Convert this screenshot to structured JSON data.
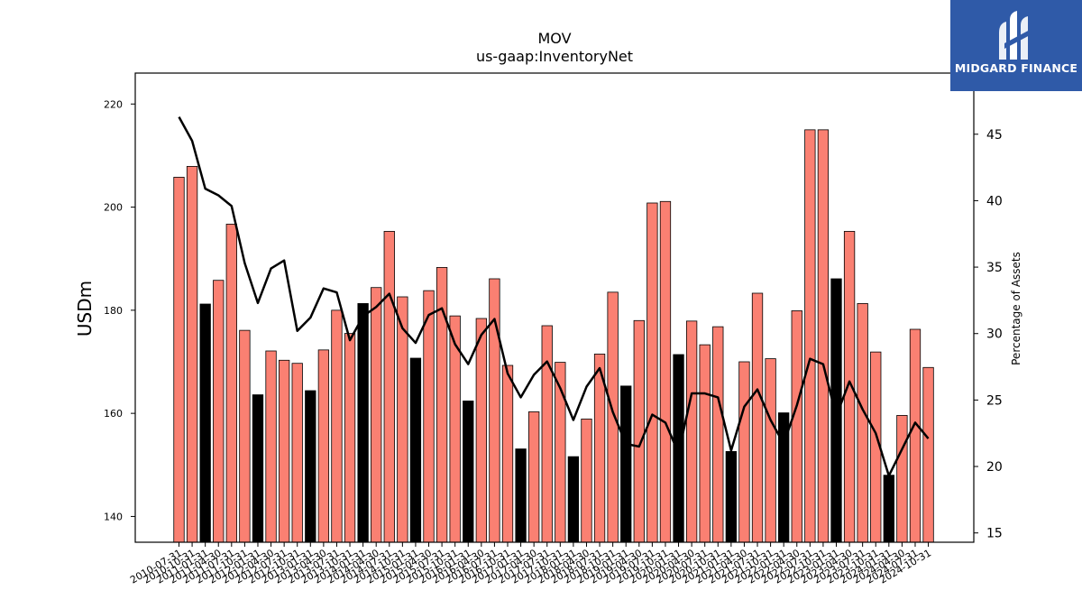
{
  "brand": {
    "name": "MIDGARD FINANCE",
    "logo_icon": "midgard-m-icon",
    "color": "#2f5aa8"
  },
  "chart_data": {
    "type": "bar",
    "title": "MOV",
    "subtitle": "us-gaap:InventoryNet",
    "ylabel": "USDm",
    "y2label": "Percentage of Assets",
    "ylim": [
      135,
      226
    ],
    "y2lim": [
      14.3,
      49.6
    ],
    "yticks": [
      140,
      160,
      180,
      200,
      220
    ],
    "y2ticks": [
      15,
      20,
      25,
      30,
      35,
      40,
      45
    ],
    "bar_color": "#fa8072",
    "highlight_color": "#000000",
    "line_color": "#000000",
    "categories": [
      "2010-07-31",
      "2010-10-31",
      "2011-01-31",
      "2011-04-30",
      "2011-07-31",
      "2011-10-31",
      "2012-01-31",
      "2012-04-30",
      "2012-07-31",
      "2012-10-31",
      "2013-01-31",
      "2013-04-30",
      "2013-07-31",
      "2013-10-31",
      "2014-01-31",
      "2014-04-30",
      "2014-07-31",
      "2014-10-31",
      "2015-01-31",
      "2015-04-30",
      "2015-07-31",
      "2015-10-31",
      "2016-01-31",
      "2016-04-30",
      "2016-07-31",
      "2016-10-31",
      "2017-01-31",
      "2017-04-30",
      "2017-07-31",
      "2017-10-31",
      "2018-01-31",
      "2018-04-30",
      "2018-07-31",
      "2018-10-31",
      "2019-01-31",
      "2019-04-30",
      "2019-07-31",
      "2019-10-31",
      "2020-01-31",
      "2020-04-30",
      "2020-07-31",
      "2020-10-31",
      "2021-01-31",
      "2021-04-30",
      "2021-07-31",
      "2021-10-31",
      "2022-01-31",
      "2022-04-30",
      "2022-07-31",
      "2022-10-31",
      "2023-01-31",
      "2023-04-30",
      "2023-07-31",
      "2023-10-31",
      "2024-01-31",
      "2024-04-30",
      "2024-07-31",
      "2024-10-31"
    ],
    "tick_labels": [
      "2010-07-31",
      "2010-10-31",
      "2011-01-31",
      "2011-04-30",
      "2011-07-31",
      "2011-10-31",
      "2012-01-31",
      "2012-04-30",
      "2012-07-31",
      "2012-10-31",
      "2013-01-31",
      "2013-04-30",
      "2013-07-31",
      "2013-10-31",
      "2014-01-31",
      "2014-04-30",
      "2014-07-31",
      "2014-10-31",
      "2015-01-31",
      "2015-04-30",
      "2015-07-31",
      "2015-10-31",
      "2016-01-31",
      "2016-04-30",
      "2016-07-31",
      "2016-10-31",
      "2017-01-31",
      "2017-04-30",
      "2017-07-31",
      "2017-10-31",
      "2018-01-31",
      "2018-04-30",
      "2018-07-31",
      "2018-10-31",
      "2019-01-31",
      "2019-04-30",
      "2019-07-31",
      "2019-10-31",
      "2020-01-31",
      "2020-04-30",
      "2020-07-31",
      "2020-10-31",
      "2021-01-31",
      "2021-04-30",
      "2021-07-31",
      "2021-10-31",
      "2022-01-31",
      "2022-04-30",
      "2022-07-31",
      "2022-10-31",
      "2023-01-31",
      "2023-04-30",
      "2023-07-31",
      "2023-10-31",
      "2024-01-31",
      "2024-04-30",
      "2024-07-31",
      "2024-10-31"
    ],
    "values": [
      205.8,
      207.9,
      181.2,
      185.8,
      196.7,
      176.1,
      163.6,
      172.1,
      170.3,
      169.7,
      164.4,
      172.3,
      180.0,
      175.5,
      181.3,
      184.4,
      195.3,
      182.6,
      170.7,
      183.8,
      188.3,
      178.9,
      162.4,
      178.4,
      186.1,
      169.3,
      153.1,
      160.3,
      177.0,
      169.9,
      151.6,
      158.9,
      171.5,
      183.5,
      165.3,
      178.0,
      200.8,
      201.1,
      171.4,
      177.9,
      173.3,
      176.8,
      152.6,
      170.0,
      183.3,
      170.6,
      160.1,
      179.9,
      215.0,
      215.0,
      186.1,
      195.3,
      181.3,
      171.9,
      148.0,
      159.6,
      176.3,
      168.9
    ],
    "highlight": [
      false,
      false,
      true,
      false,
      false,
      false,
      true,
      false,
      false,
      false,
      true,
      false,
      false,
      false,
      true,
      false,
      false,
      false,
      true,
      false,
      false,
      false,
      true,
      false,
      false,
      false,
      true,
      false,
      false,
      false,
      true,
      false,
      false,
      false,
      true,
      false,
      false,
      false,
      true,
      false,
      false,
      false,
      true,
      false,
      false,
      false,
      true,
      false,
      false,
      false,
      true,
      false,
      false,
      false,
      true,
      false,
      false,
      false
    ],
    "pct_of_assets": [
      46.3,
      44.5,
      40.9,
      40.4,
      39.6,
      35.3,
      32.3,
      34.9,
      35.5,
      30.2,
      31.2,
      33.4,
      33.1,
      29.5,
      31.3,
      32.0,
      33.0,
      30.4,
      29.3,
      31.4,
      31.9,
      29.2,
      27.7,
      29.9,
      31.1,
      27.0,
      25.2,
      26.9,
      27.9,
      25.9,
      23.5,
      26.0,
      27.4,
      24.1,
      21.7,
      21.5,
      23.9,
      23.3,
      21.0,
      25.5,
      25.5,
      25.2,
      21.2,
      24.5,
      25.8,
      23.5,
      21.7,
      24.6,
      28.1,
      27.7,
      23.8,
      26.4,
      24.3,
      22.5,
      19.3,
      21.3,
      23.3,
      22.1
    ]
  }
}
